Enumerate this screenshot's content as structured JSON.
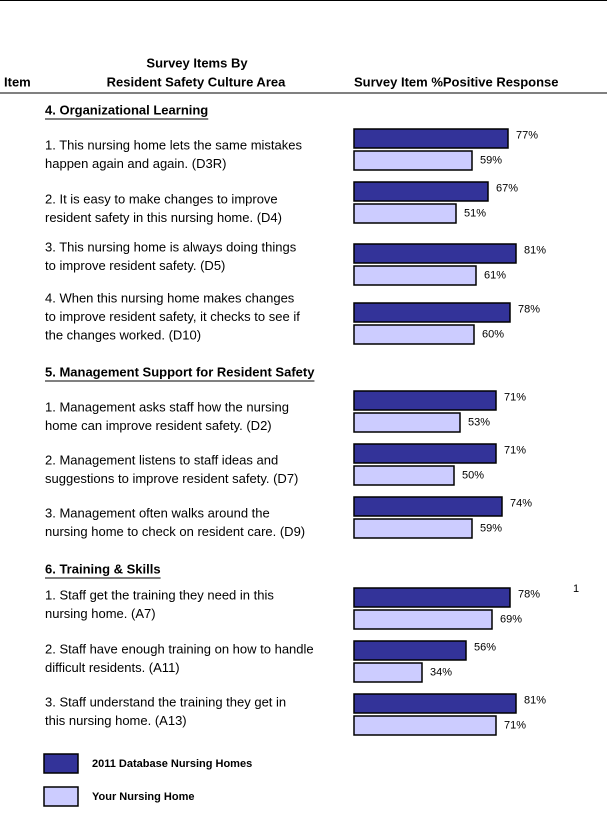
{
  "header": {
    "item": "Item",
    "survey_items": [
      "Survey Items By",
      "Resident Safety Culture Area"
    ],
    "response": "Survey Item %Positive Response"
  },
  "series": [
    {
      "name": "2011 Database Nursing Homes",
      "color": "#333399"
    },
    {
      "name": "Your Nursing Home",
      "color": "#ccccff"
    }
  ],
  "sections": [
    {
      "title": "4.  Organizational Learning",
      "items": [
        {
          "lines": [
            "1. This nursing home lets the same mistakes",
            "happen again and again. (D3R)"
          ],
          "values": [
            77,
            59
          ],
          "value_labels": [
            "77%",
            "59%"
          ]
        },
        {
          "lines": [
            "2. It is easy to make changes to improve",
            "resident safety in this nursing home. (D4)"
          ],
          "values": [
            67,
            51
          ],
          "value_labels": [
            "67%",
            "51%"
          ]
        },
        {
          "lines": [
            "3. This nursing home is always doing things",
            "to improve resident safety. (D5)"
          ],
          "values": [
            81,
            61
          ],
          "value_labels": [
            "81%",
            "61%"
          ]
        },
        {
          "lines": [
            "4. When this nursing home makes changes",
            "to improve resident safety, it checks to see if",
            "the changes worked. (D10)"
          ],
          "values": [
            78,
            60
          ],
          "value_labels": [
            "78%",
            "60%"
          ]
        }
      ]
    },
    {
      "title": "5.  Management Support for Resident Safety",
      "items": [
        {
          "lines": [
            "1. Management asks staff how the nursing",
            "home can improve resident safety. (D2)"
          ],
          "values": [
            71,
            53
          ],
          "value_labels": [
            "71%",
            "53%"
          ]
        },
        {
          "lines": [
            "2. Management listens to staff ideas and",
            "suggestions to improve resident safety. (D7)"
          ],
          "values": [
            71,
            50
          ],
          "value_labels": [
            "71%",
            "50%"
          ]
        },
        {
          "lines": [
            "3. Management often walks around the",
            "nursing home to check on resident care.  (D9)"
          ],
          "values": [
            74,
            59
          ],
          "value_labels": [
            "74%",
            "59%"
          ]
        }
      ]
    },
    {
      "title": "6.  Training & Skills",
      "items": [
        {
          "lines": [
            "1. Staff get the training they need in this",
            "nursing home. (A7)"
          ],
          "values": [
            78,
            69
          ],
          "value_labels": [
            "78%",
            "69%"
          ]
        },
        {
          "lines": [
            "2. Staff have enough training on how to handle",
            "difficult residents. (A11)"
          ],
          "values": [
            56,
            34
          ],
          "value_labels": [
            "56%",
            "34%"
          ]
        },
        {
          "lines": [
            "3. Staff understand the training they get in",
            "this nursing home. (A13)"
          ],
          "values": [
            81,
            71
          ],
          "value_labels": [
            "81%",
            "71%"
          ]
        }
      ]
    }
  ],
  "page_number": "1"
}
